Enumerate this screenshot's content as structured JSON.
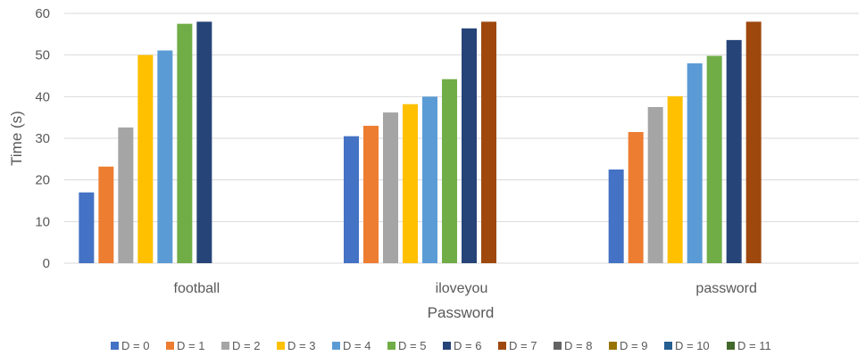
{
  "chart_data": {
    "type": "bar",
    "xlabel": "Password",
    "ylabel": "Time (s)",
    "ylim": [
      0,
      60
    ],
    "yticks": [
      0,
      10,
      20,
      30,
      40,
      50,
      60
    ],
    "grid": true,
    "legend_position": "bottom",
    "categories": [
      "football",
      "iloveyou",
      "password"
    ],
    "series": [
      {
        "name": "D = 0",
        "color": "#4472C4",
        "values": [
          17.0,
          30.5,
          22.5
        ]
      },
      {
        "name": "D = 1",
        "color": "#ED7D31",
        "values": [
          23.2,
          33.0,
          31.5
        ]
      },
      {
        "name": "D = 2",
        "color": "#A5A5A5",
        "values": [
          32.6,
          36.2,
          37.5
        ]
      },
      {
        "name": "D = 3",
        "color": "#FFC000",
        "values": [
          50.0,
          38.2,
          40.1
        ]
      },
      {
        "name": "D = 4",
        "color": "#5B9BD5",
        "values": [
          51.1,
          40.0,
          48.0
        ]
      },
      {
        "name": "D = 5",
        "color": "#70AD47",
        "values": [
          57.5,
          44.2,
          49.8
        ]
      },
      {
        "name": "D = 6",
        "color": "#264478",
        "values": [
          58.0,
          56.4,
          53.6
        ]
      },
      {
        "name": "D = 7",
        "color": "#9E480E",
        "values": [
          null,
          58.0,
          58.0
        ]
      },
      {
        "name": "D = 8",
        "color": "#636363",
        "values": [
          null,
          null,
          null
        ]
      },
      {
        "name": "D = 9",
        "color": "#997300",
        "values": [
          null,
          null,
          null
        ]
      },
      {
        "name": "D = 10",
        "color": "#255E91",
        "values": [
          null,
          null,
          null
        ]
      },
      {
        "name": "D = 11",
        "color": "#43682B",
        "values": [
          null,
          null,
          null
        ]
      }
    ]
  }
}
